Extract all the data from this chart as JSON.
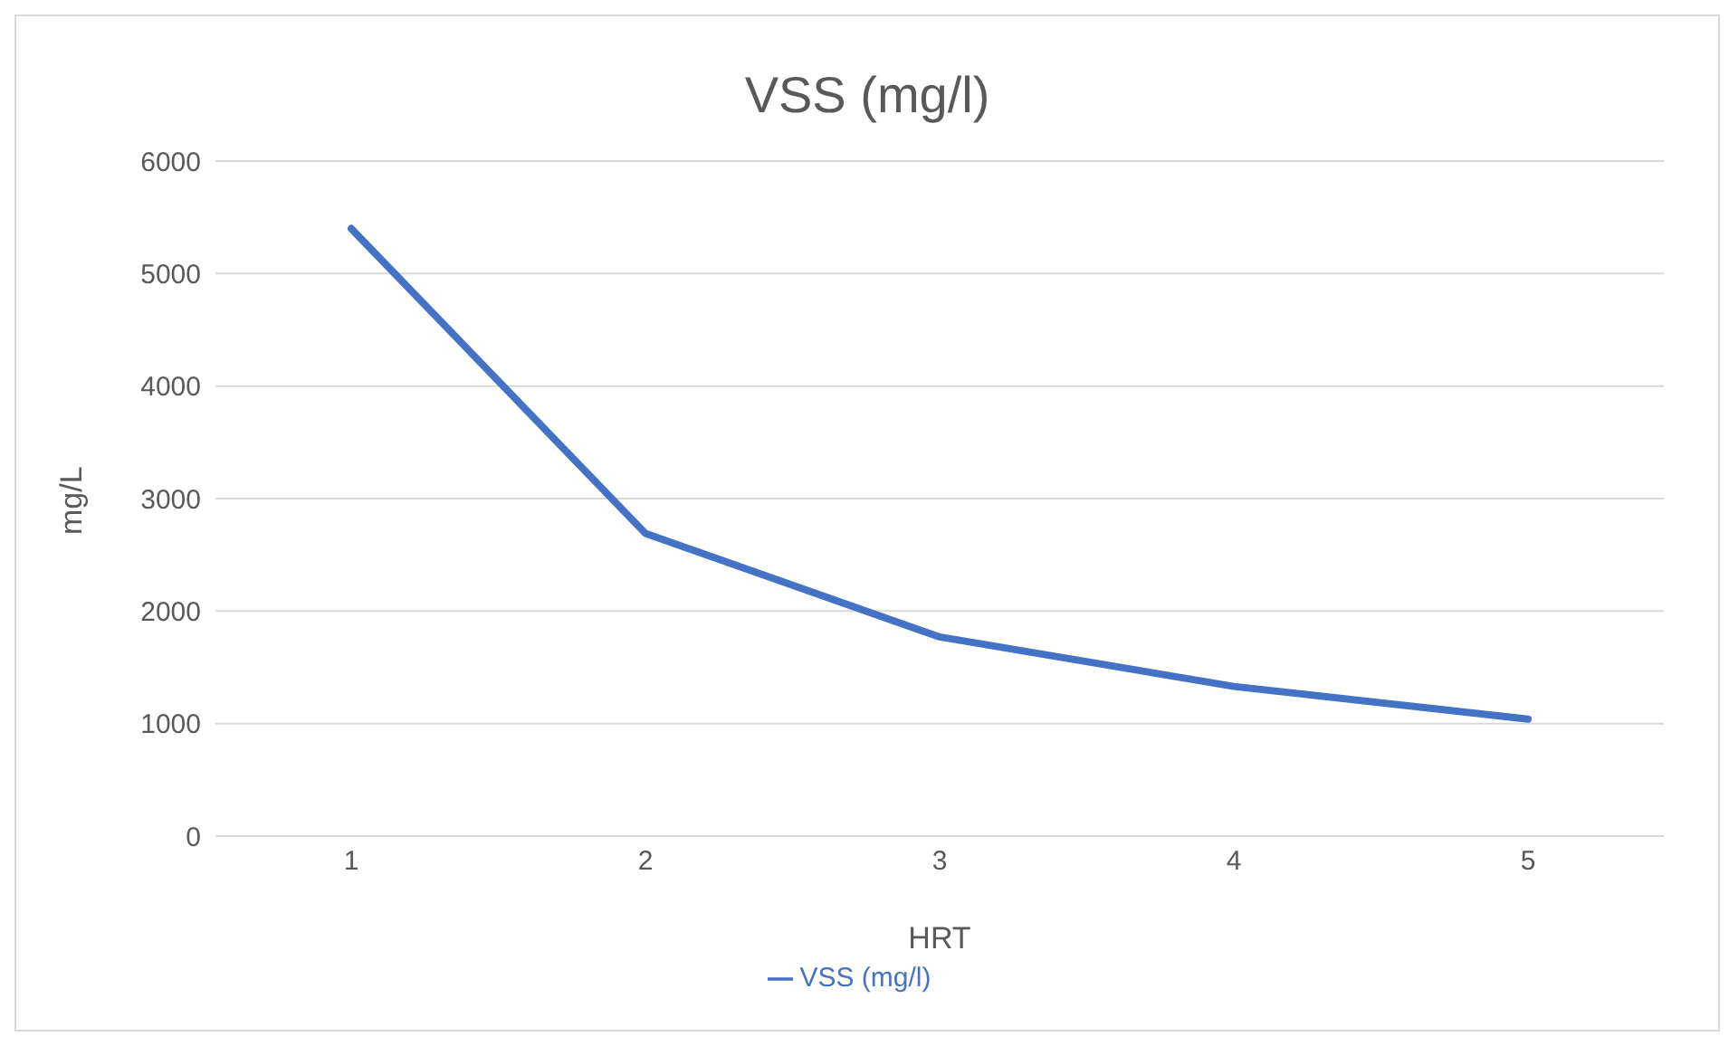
{
  "chart_data": {
    "type": "line",
    "title": "VSS (mg/l)",
    "xlabel": "HRT",
    "ylabel": "mg/L",
    "categories": [
      "1",
      "2",
      "3",
      "4",
      "5"
    ],
    "series": [
      {
        "name": "VSS (mg/l)",
        "color": "#4472c4",
        "values": [
          5400,
          2690,
          1770,
          1330,
          1040
        ]
      }
    ],
    "ylim": [
      0,
      6000
    ],
    "yticks": [
      0,
      1000,
      2000,
      3000,
      4000,
      5000,
      6000
    ],
    "grid": "y",
    "legend": "bottom",
    "marker": "none",
    "line_style": "solid"
  }
}
